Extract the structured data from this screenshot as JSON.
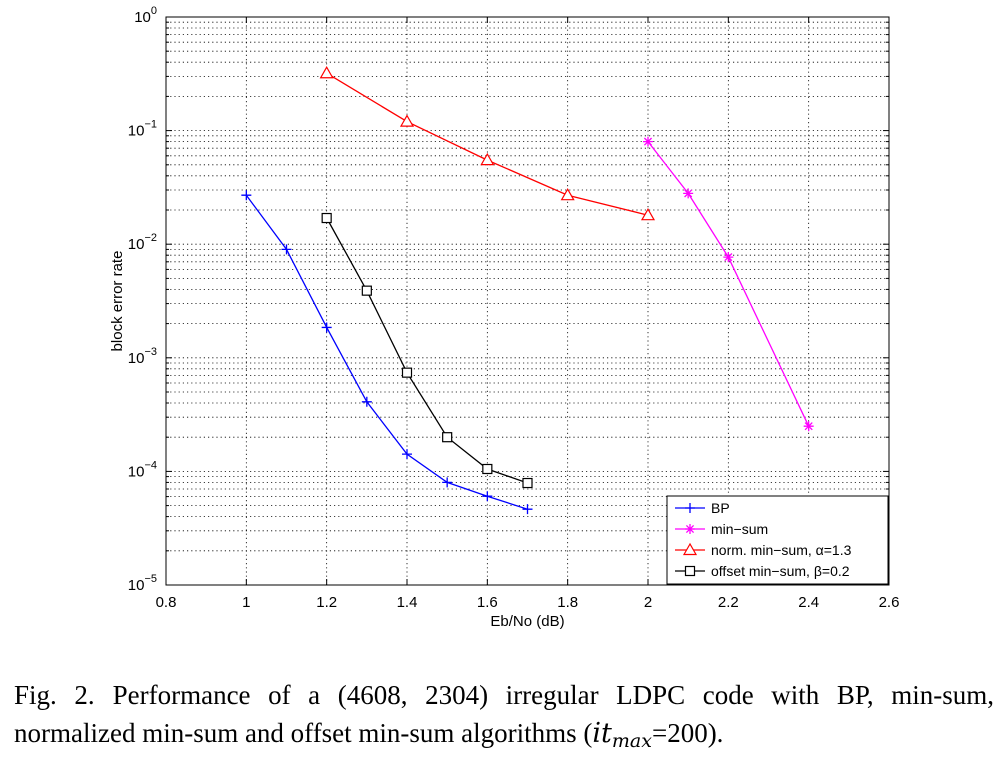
{
  "chart_data": {
    "type": "line",
    "xlabel": "Eb/No (dB)",
    "ylabel": "block error rate",
    "xlim": [
      0.8,
      2.6
    ],
    "ylim": [
      1e-05,
      1
    ],
    "yscale": "log",
    "grid": true,
    "legend_position": "bottom-right",
    "x_ticks": [
      "0.8",
      "1",
      "1.2",
      "1.4",
      "1.6",
      "1.8",
      "2",
      "2.2",
      "2.4",
      "2.6"
    ],
    "y_ticks": [
      {
        "base": "10",
        "exp": "0"
      },
      {
        "base": "10",
        "exp": "−1"
      },
      {
        "base": "10",
        "exp": "−2"
      },
      {
        "base": "10",
        "exp": "−3"
      },
      {
        "base": "10",
        "exp": "−4"
      },
      {
        "base": "10",
        "exp": "−5"
      }
    ],
    "series": [
      {
        "name": "BP",
        "color": "#0000ff",
        "marker": "plus",
        "x": [
          1.0,
          1.1,
          1.2,
          1.3,
          1.4,
          1.5,
          1.6,
          1.7
        ],
        "y": [
          0.027,
          0.009,
          0.00185,
          0.00041,
          0.000142,
          8e-05,
          6.05e-05,
          4.65e-05
        ]
      },
      {
        "name": "min−sum",
        "color": "#ff00ff",
        "marker": "star",
        "x": [
          2.0,
          2.1,
          2.2,
          2.4
        ],
        "y": [
          0.08,
          0.028,
          0.0077,
          0.00025
        ]
      },
      {
        "name": "norm. min−sum, α=1.3",
        "color": "#ff0000",
        "marker": "triangle",
        "x": [
          1.2,
          1.4,
          1.6,
          1.8,
          2.0
        ],
        "y": [
          0.32,
          0.12,
          0.055,
          0.027,
          0.018
        ]
      },
      {
        "name": "offset min−sum, β=0.2",
        "color": "#000000",
        "marker": "square",
        "x": [
          1.2,
          1.3,
          1.4,
          1.5,
          1.6,
          1.7
        ],
        "y": [
          0.017,
          0.0039,
          0.00074,
          0.0002,
          0.000105,
          7.9e-05
        ]
      }
    ]
  },
  "caption": {
    "label": "Fig. 2.",
    "text_before": "Performance of a (4608, 2304) irregular LDPC code with BP, min-sum, normalized min-sum and offset min-sum algorithms (",
    "math_base": "it",
    "math_sub": "max",
    "text_after": "=200)."
  }
}
